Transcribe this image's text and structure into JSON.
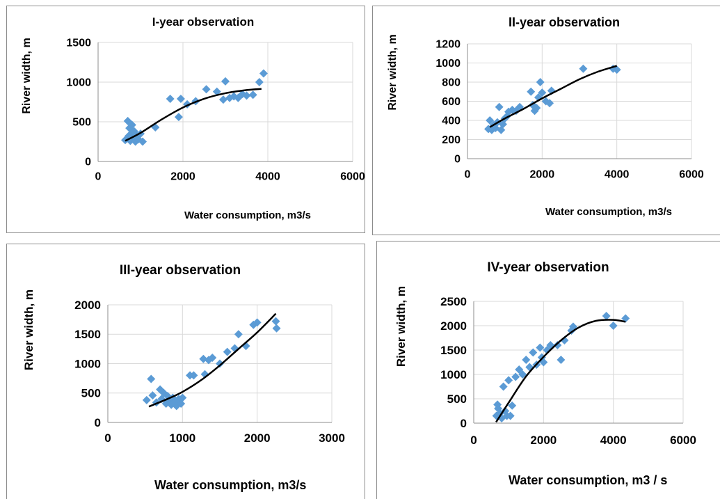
{
  "chart_data": [
    {
      "type": "scatter",
      "title": "I-year observation",
      "xlabel": "Water consumption,  m3/s",
      "ylabel": "River width, m",
      "xlim": [
        0,
        6000
      ],
      "ylim": [
        0,
        1500
      ],
      "xticks": [
        0,
        2000,
        4000,
        6000
      ],
      "yticks": [
        0,
        500,
        1000,
        1500
      ],
      "grid": true,
      "marker_color": "#5b9bd5",
      "points": [
        [
          640,
          270
        ],
        [
          700,
          510
        ],
        [
          720,
          320
        ],
        [
          740,
          420
        ],
        [
          760,
          260
        ],
        [
          780,
          350
        ],
        [
          800,
          460
        ],
        [
          820,
          300
        ],
        [
          850,
          380
        ],
        [
          880,
          250
        ],
        [
          900,
          330
        ],
        [
          950,
          280
        ],
        [
          1000,
          350
        ],
        [
          1050,
          250
        ],
        [
          1350,
          430
        ],
        [
          1700,
          790
        ],
        [
          1900,
          560
        ],
        [
          1950,
          790
        ],
        [
          2100,
          720
        ],
        [
          2300,
          760
        ],
        [
          2550,
          910
        ],
        [
          2800,
          880
        ],
        [
          2950,
          780
        ],
        [
          3000,
          1010
        ],
        [
          3100,
          800
        ],
        [
          3200,
          820
        ],
        [
          3300,
          800
        ],
        [
          3400,
          850
        ],
        [
          3500,
          830
        ],
        [
          3650,
          840
        ],
        [
          3800,
          1000
        ],
        [
          3900,
          1110
        ]
      ],
      "trend": [
        [
          640,
          260
        ],
        [
          1000,
          360
        ],
        [
          1500,
          530
        ],
        [
          2000,
          680
        ],
        [
          2500,
          790
        ],
        [
          3000,
          860
        ],
        [
          3500,
          900
        ],
        [
          3850,
          915
        ]
      ]
    },
    {
      "type": "scatter",
      "title": "II-year observation",
      "xlabel": "Water consumption,  m3/s",
      "ylabel": "River width, m",
      "xlim": [
        0,
        6000
      ],
      "ylim": [
        0,
        1200
      ],
      "xticks": [
        0,
        2000,
        4000,
        6000
      ],
      "yticks": [
        0,
        200,
        400,
        600,
        800,
        1000,
        1200
      ],
      "grid": true,
      "marker_color": "#5b9bd5",
      "points": [
        [
          560,
          310
        ],
        [
          600,
          400
        ],
        [
          650,
          300
        ],
        [
          700,
          350
        ],
        [
          750,
          320
        ],
        [
          800,
          380
        ],
        [
          850,
          540
        ],
        [
          900,
          300
        ],
        [
          950,
          360
        ],
        [
          1000,
          420
        ],
        [
          1050,
          440
        ],
        [
          1100,
          490
        ],
        [
          1200,
          510
        ],
        [
          1300,
          500
        ],
        [
          1400,
          540
        ],
        [
          1700,
          700
        ],
        [
          1750,
          560
        ],
        [
          1800,
          500
        ],
        [
          1850,
          530
        ],
        [
          1900,
          640
        ],
        [
          1950,
          800
        ],
        [
          2000,
          690
        ],
        [
          2100,
          600
        ],
        [
          2200,
          580
        ],
        [
          2250,
          710
        ],
        [
          3100,
          940
        ],
        [
          3900,
          940
        ],
        [
          4000,
          930
        ]
      ],
      "trend": [
        [
          600,
          330
        ],
        [
          1000,
          420
        ],
        [
          1500,
          520
        ],
        [
          2000,
          630
        ],
        [
          2500,
          730
        ],
        [
          3000,
          830
        ],
        [
          3500,
          910
        ],
        [
          4000,
          970
        ]
      ]
    },
    {
      "type": "scatter",
      "title": "III-year observation",
      "xlabel": "Water consumption, m3/s",
      "ylabel": "River width, m",
      "xlim": [
        0,
        3000
      ],
      "ylim": [
        0,
        2000
      ],
      "xticks": [
        0,
        1000,
        2000,
        3000
      ],
      "yticks": [
        0,
        500,
        1000,
        1500,
        2000
      ],
      "grid": true,
      "marker_color": "#5b9bd5",
      "points": [
        [
          520,
          380
        ],
        [
          580,
          740
        ],
        [
          600,
          460
        ],
        [
          650,
          340
        ],
        [
          700,
          560
        ],
        [
          720,
          400
        ],
        [
          750,
          500
        ],
        [
          780,
          320
        ],
        [
          800,
          450
        ],
        [
          820,
          380
        ],
        [
          850,
          300
        ],
        [
          870,
          420
        ],
        [
          900,
          350
        ],
        [
          920,
          280
        ],
        [
          950,
          400
        ],
        [
          980,
          320
        ],
        [
          1000,
          420
        ],
        [
          1100,
          800
        ],
        [
          1150,
          800
        ],
        [
          1280,
          1080
        ],
        [
          1300,
          820
        ],
        [
          1350,
          1060
        ],
        [
          1400,
          1100
        ],
        [
          1500,
          1000
        ],
        [
          1600,
          1200
        ],
        [
          1700,
          1260
        ],
        [
          1750,
          1500
        ],
        [
          1850,
          1300
        ],
        [
          1950,
          1660
        ],
        [
          2000,
          1700
        ],
        [
          2250,
          1720
        ],
        [
          2260,
          1600
        ]
      ],
      "trend": [
        [
          550,
          270
        ],
        [
          800,
          400
        ],
        [
          1000,
          520
        ],
        [
          1250,
          720
        ],
        [
          1500,
          970
        ],
        [
          1750,
          1250
        ],
        [
          2000,
          1530
        ],
        [
          2250,
          1850
        ]
      ]
    },
    {
      "type": "scatter",
      "title": "IV-year observation",
      "xlabel": "Water consumption, m3 / s",
      "ylabel": "River width, m",
      "xlim": [
        0,
        6000
      ],
      "ylim": [
        0,
        2500
      ],
      "xticks": [
        0,
        2000,
        4000,
        6000
      ],
      "yticks": [
        0,
        500,
        1000,
        1500,
        2000,
        2500
      ],
      "grid": true,
      "marker_color": "#5b9bd5",
      "points": [
        [
          650,
          150
        ],
        [
          680,
          380
        ],
        [
          700,
          300
        ],
        [
          750,
          200
        ],
        [
          800,
          100
        ],
        [
          850,
          750
        ],
        [
          900,
          250
        ],
        [
          950,
          150
        ],
        [
          1000,
          880
        ],
        [
          1050,
          150
        ],
        [
          1100,
          360
        ],
        [
          1200,
          950
        ],
        [
          1300,
          1100
        ],
        [
          1400,
          1000
        ],
        [
          1500,
          1300
        ],
        [
          1600,
          1150
        ],
        [
          1700,
          1450
        ],
        [
          1800,
          1200
        ],
        [
          1900,
          1550
        ],
        [
          1950,
          1350
        ],
        [
          2000,
          1250
        ],
        [
          2100,
          1500
        ],
        [
          2200,
          1600
        ],
        [
          2400,
          1600
        ],
        [
          2500,
          1300
        ],
        [
          2600,
          1700
        ],
        [
          2800,
          1900
        ],
        [
          2850,
          1980
        ],
        [
          3800,
          2200
        ],
        [
          4000,
          2000
        ],
        [
          4350,
          2150
        ]
      ],
      "trend": [
        [
          640,
          20
        ],
        [
          1000,
          420
        ],
        [
          1500,
          960
        ],
        [
          2000,
          1360
        ],
        [
          2500,
          1700
        ],
        [
          3000,
          1960
        ],
        [
          3500,
          2100
        ],
        [
          4000,
          2120
        ],
        [
          4350,
          2080
        ]
      ]
    }
  ]
}
